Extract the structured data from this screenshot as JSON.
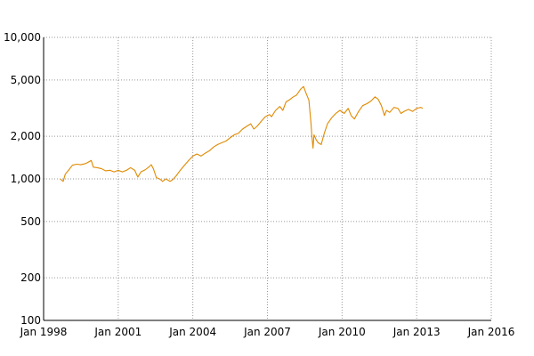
{
  "chart_data": {
    "type": "line",
    "title": "",
    "xlabel": "",
    "ylabel": "",
    "y_scale": "log",
    "xlim": [
      "1998-01-01",
      "2016-01-01"
    ],
    "ylim": [
      100,
      10000
    ],
    "grid": true,
    "x_ticks": [
      {
        "date": "1998-01-01",
        "label": "Jan 1998"
      },
      {
        "date": "2001-01-01",
        "label": "Jan 2001"
      },
      {
        "date": "2004-01-01",
        "label": "Jan 2004"
      },
      {
        "date": "2007-01-01",
        "label": "Jan 2007"
      },
      {
        "date": "2010-01-01",
        "label": "Jan 2010"
      },
      {
        "date": "2013-01-01",
        "label": "Jan 2013"
      },
      {
        "date": "2016-01-01",
        "label": "Jan 2016"
      }
    ],
    "y_ticks": [
      {
        "value": 100,
        "label": "100"
      },
      {
        "value": 200,
        "label": "200"
      },
      {
        "value": 500,
        "label": "500"
      },
      {
        "value": 1000,
        "label": "1,000"
      },
      {
        "value": 2000,
        "label": "2,000"
      },
      {
        "value": 5000,
        "label": "5,000"
      },
      {
        "value": 10000,
        "label": "10,000"
      }
    ],
    "series": [
      {
        "color": "#e08a00",
        "points": [
          [
            "1998-09-01",
            1000
          ],
          [
            "1998-10-15",
            960
          ],
          [
            "1998-11-15",
            1080
          ],
          [
            "1999-01-01",
            1150
          ],
          [
            "1999-03-01",
            1250
          ],
          [
            "1999-05-01",
            1270
          ],
          [
            "1999-07-01",
            1260
          ],
          [
            "1999-09-01",
            1280
          ],
          [
            "1999-10-15",
            1310
          ],
          [
            "1999-12-01",
            1350
          ],
          [
            "2000-01-01",
            1210
          ],
          [
            "2000-03-01",
            1200
          ],
          [
            "2000-05-01",
            1180
          ],
          [
            "2000-07-01",
            1140
          ],
          [
            "2000-09-01",
            1150
          ],
          [
            "2000-11-01",
            1120
          ],
          [
            "2001-01-01",
            1150
          ],
          [
            "2001-03-01",
            1120
          ],
          [
            "2001-05-01",
            1150
          ],
          [
            "2001-07-01",
            1200
          ],
          [
            "2001-09-01",
            1150
          ],
          [
            "2001-10-15",
            1030
          ],
          [
            "2001-12-01",
            1120
          ],
          [
            "2002-02-01",
            1160
          ],
          [
            "2002-04-01",
            1220
          ],
          [
            "2002-05-01",
            1260
          ],
          [
            "2002-06-01",
            1180
          ],
          [
            "2002-07-15",
            1020
          ],
          [
            "2002-09-01",
            1000
          ],
          [
            "2002-10-15",
            960
          ],
          [
            "2002-12-01",
            1000
          ],
          [
            "2003-02-01",
            960
          ],
          [
            "2003-03-15",
            990
          ],
          [
            "2003-05-01",
            1050
          ],
          [
            "2003-07-01",
            1150
          ],
          [
            "2003-09-01",
            1250
          ],
          [
            "2003-11-01",
            1350
          ],
          [
            "2004-01-01",
            1450
          ],
          [
            "2004-03-01",
            1500
          ],
          [
            "2004-05-01",
            1450
          ],
          [
            "2004-07-01",
            1520
          ],
          [
            "2004-09-01",
            1580
          ],
          [
            "2004-11-01",
            1680
          ],
          [
            "2005-01-01",
            1750
          ],
          [
            "2005-03-01",
            1800
          ],
          [
            "2005-05-01",
            1850
          ],
          [
            "2005-07-01",
            1950
          ],
          [
            "2005-09-01",
            2050
          ],
          [
            "2005-11-01",
            2100
          ],
          [
            "2006-01-01",
            2250
          ],
          [
            "2006-03-01",
            2350
          ],
          [
            "2006-05-01",
            2450
          ],
          [
            "2006-06-15",
            2250
          ],
          [
            "2006-08-01",
            2350
          ],
          [
            "2006-10-01",
            2550
          ],
          [
            "2006-12-01",
            2750
          ],
          [
            "2007-02-01",
            2850
          ],
          [
            "2007-03-01",
            2750
          ],
          [
            "2007-05-01",
            3050
          ],
          [
            "2007-07-01",
            3250
          ],
          [
            "2007-08-15",
            3050
          ],
          [
            "2007-10-01",
            3500
          ],
          [
            "2007-12-01",
            3650
          ],
          [
            "2008-01-15",
            3800
          ],
          [
            "2008-03-01",
            3900
          ],
          [
            "2008-05-01",
            4300
          ],
          [
            "2008-06-15",
            4500
          ],
          [
            "2008-07-15",
            4100
          ],
          [
            "2008-09-01",
            3600
          ],
          [
            "2008-10-01",
            2500
          ],
          [
            "2008-10-15",
            2000
          ],
          [
            "2008-11-01",
            1650
          ],
          [
            "2008-11-15",
            2050
          ],
          [
            "2008-12-15",
            1900
          ],
          [
            "2009-01-15",
            1800
          ],
          [
            "2009-03-01",
            1750
          ],
          [
            "2009-04-15",
            2100
          ],
          [
            "2009-06-01",
            2450
          ],
          [
            "2009-08-01",
            2700
          ],
          [
            "2009-10-01",
            2900
          ],
          [
            "2009-12-01",
            3050
          ],
          [
            "2010-02-01",
            2900
          ],
          [
            "2010-04-01",
            3150
          ],
          [
            "2010-05-15",
            2800
          ],
          [
            "2010-07-01",
            2650
          ],
          [
            "2010-09-01",
            3000
          ],
          [
            "2010-11-01",
            3300
          ],
          [
            "2011-01-01",
            3400
          ],
          [
            "2011-03-01",
            3550
          ],
          [
            "2011-05-01",
            3800
          ],
          [
            "2011-06-15",
            3650
          ],
          [
            "2011-08-01",
            3300
          ],
          [
            "2011-09-15",
            2800
          ],
          [
            "2011-10-15",
            3050
          ],
          [
            "2011-12-01",
            2950
          ],
          [
            "2012-02-01",
            3200
          ],
          [
            "2012-04-01",
            3150
          ],
          [
            "2012-05-15",
            2900
          ],
          [
            "2012-07-01",
            3000
          ],
          [
            "2012-09-01",
            3100
          ],
          [
            "2012-11-01",
            3000
          ],
          [
            "2013-01-01",
            3150
          ],
          [
            "2013-03-01",
            3200
          ],
          [
            "2013-03-31",
            3150
          ]
        ]
      }
    ]
  }
}
